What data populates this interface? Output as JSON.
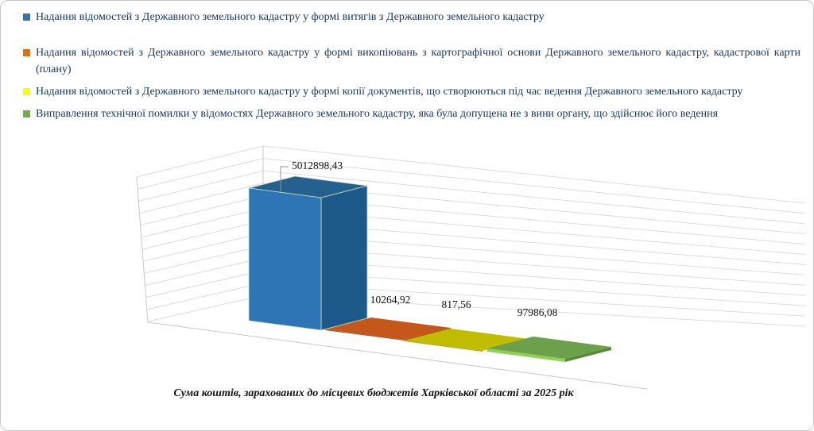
{
  "legend": {
    "text_color": "#17365D",
    "items": [
      {
        "label": "Надання відомостей з Державного земельного кадастру у формі витягів з Державного земельного кадастру",
        "color": "#2E75B6"
      },
      {
        "label": "Надання відомостей з Державного земельного кадастру у формі викопіювань з картографічної основи Державного земельного кадастру, кадастрової карти (плану)",
        "color": "#E2700F"
      },
      {
        "label": "Надання відомостей з Державного земельного кадастру у формі  копії документів, що створюються під час ведення Державного земельного кадастру",
        "color": "#FFFF00"
      },
      {
        "label": "Виправлення технічної помилки у відомостях Державного земельного кадастру, яка була допущена не з вини органу, що здійснює його ведення",
        "color": "#70AD47"
      }
    ]
  },
  "chart_data": {
    "type": "bar",
    "style": "3d-column-perspective",
    "title": "Сума коштів, зарахованих до місцевих бюджетів Харківської області за 2025 рік",
    "categories": [
      "Надання відомостей з Державного земельного кадастру у формі витягів з Державного земельного кадастру",
      "Надання відомостей з Державного земельного кадастру у формі викопіювань з картографічної основи Державного земельного кадастру, кадастрової карти (плану)",
      "Надання відомостей з Державного земельного кадастру у формі  копії документів, що створюються під час ведення Державного земельного кадастру",
      "Виправлення технічної помилки у відомостях Державного земельного кадастру, яка була допущена не з вини органу, що здійснює його ведення"
    ],
    "values": [
      5012898.43,
      10264.92,
      817.56,
      97986.08
    ],
    "data_labels": [
      "5012898,43",
      "10264,92",
      "817,56",
      "97986,08"
    ],
    "series_colors": [
      "#2E75B6",
      "#E2700F",
      "#FFFF00",
      "#70AD47"
    ],
    "faces": [
      {
        "top": "#24618F",
        "front": "#2E75B6",
        "side": "#1C5A8C"
      },
      {
        "top": "#C4581B",
        "front": "#A34712",
        "side": "#9C4513"
      },
      {
        "top": "#C2BC00",
        "front": "#A8A300",
        "side": "#A8A300"
      },
      {
        "top": "#6DA04A",
        "front": "#8ED04F",
        "side": "#578B39"
      }
    ],
    "legend_position": "top-left",
    "value_axis_labels_visible": false,
    "gridlines": true
  }
}
